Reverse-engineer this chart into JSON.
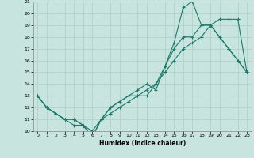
{
  "xlabel": "Humidex (Indice chaleur)",
  "xlim": [
    -0.5,
    23.5
  ],
  "ylim": [
    10,
    21
  ],
  "xticks": [
    0,
    1,
    2,
    3,
    4,
    5,
    6,
    7,
    8,
    9,
    10,
    11,
    12,
    13,
    14,
    15,
    16,
    17,
    18,
    19,
    20,
    21,
    22,
    23
  ],
  "yticks": [
    10,
    11,
    12,
    13,
    14,
    15,
    16,
    17,
    18,
    19,
    20,
    21
  ],
  "bg_color": "#c8e4de",
  "grid_color": "#aacfc8",
  "line_color": "#1a7a6a",
  "line1_x": [
    0,
    1,
    2,
    3,
    4,
    5,
    6,
    7,
    8,
    9,
    10,
    11,
    12,
    13,
    14,
    15,
    16,
    17,
    18,
    19,
    20,
    21,
    22,
    23
  ],
  "line1_y": [
    13,
    12,
    11.5,
    11,
    11,
    10.5,
    9.5,
    11,
    12,
    12.5,
    13,
    13,
    13.5,
    14,
    15,
    16,
    17,
    17.5,
    18,
    19,
    19.5,
    19.5,
    19.5,
    15
  ],
  "line2_x": [
    0,
    1,
    2,
    3,
    4,
    5,
    6,
    7,
    8,
    9,
    10,
    11,
    12,
    13,
    14,
    15,
    16,
    17,
    18,
    19,
    20,
    21,
    22,
    23
  ],
  "line2_y": [
    13,
    12,
    11.5,
    11,
    11,
    10.5,
    9.5,
    11,
    12,
    12.5,
    13,
    13.5,
    14,
    13.5,
    15.5,
    17.5,
    20.5,
    21,
    19,
    19,
    18,
    17,
    16,
    15
  ],
  "line3_x": [
    0,
    1,
    2,
    3,
    4,
    5,
    6,
    7,
    8,
    9,
    10,
    11,
    12,
    13,
    14,
    15,
    16,
    17,
    18,
    19,
    20,
    21,
    22,
    23
  ],
  "line3_y": [
    13,
    12,
    11.5,
    11,
    10.5,
    10.5,
    10,
    11,
    11.5,
    12,
    12.5,
    13,
    13,
    14,
    15.5,
    17,
    18,
    18,
    19,
    19,
    18,
    17,
    16,
    15
  ]
}
